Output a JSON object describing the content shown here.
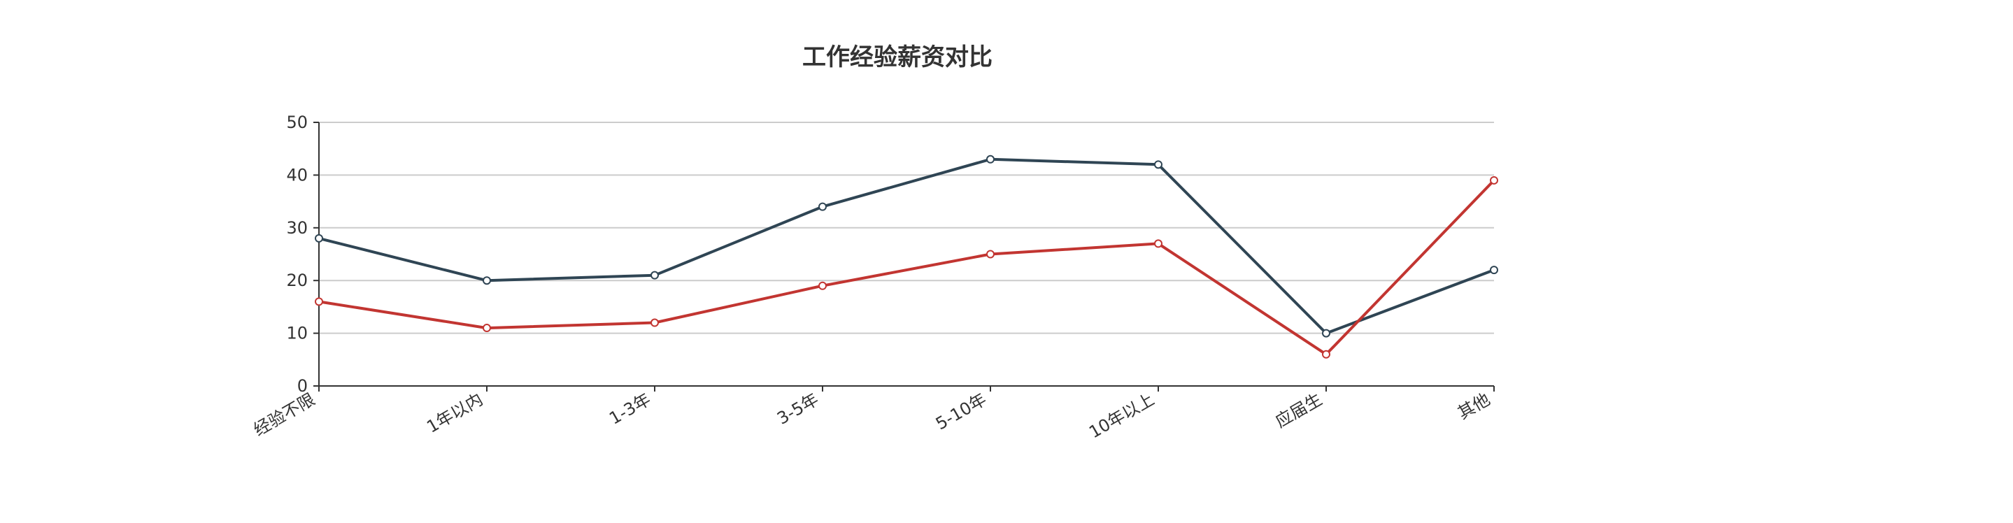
{
  "chart_data": {
    "type": "line",
    "title": "工作经验薪资对比",
    "xlabel": "",
    "ylabel": "",
    "categories": [
      "经验不限",
      "1年以内",
      "1-3年",
      "3-5年",
      "5-10年",
      "10年以上",
      "应届生",
      "其他"
    ],
    "yticks": [
      "0",
      "10",
      "20",
      "30",
      "40",
      "50"
    ],
    "ylim": [
      0,
      50
    ],
    "grid": true,
    "legend": "none",
    "series": [
      {
        "color": "#2f4554",
        "values": [
          28,
          20,
          21,
          34,
          43,
          42,
          10,
          22
        ]
      },
      {
        "color": "#c23531",
        "values": [
          16,
          11,
          12,
          19,
          25,
          27,
          6,
          39
        ]
      }
    ]
  }
}
